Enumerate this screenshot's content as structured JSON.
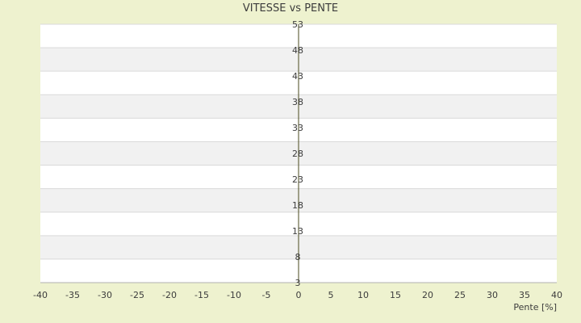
{
  "chart_data": {
    "type": "scatter",
    "title": "VITESSE vs PENTE",
    "xlabel": "Pente [%]",
    "ylabel": "",
    "xlim": [
      -40,
      40
    ],
    "ylim": [
      3,
      53
    ],
    "x_ticks": [
      -40,
      -35,
      -30,
      -25,
      -20,
      -15,
      -10,
      -5,
      0,
      5,
      10,
      15,
      20,
      25,
      30,
      35,
      40
    ],
    "y_ticks": [
      53,
      48,
      43,
      38,
      33,
      28,
      23,
      18,
      13,
      8,
      3
    ],
    "grid": true,
    "legend": "none",
    "series": [
      {
        "color": "#2e7fd0",
        "points": []
      },
      {
        "color": "#8f9630",
        "points": []
      }
    ]
  }
}
